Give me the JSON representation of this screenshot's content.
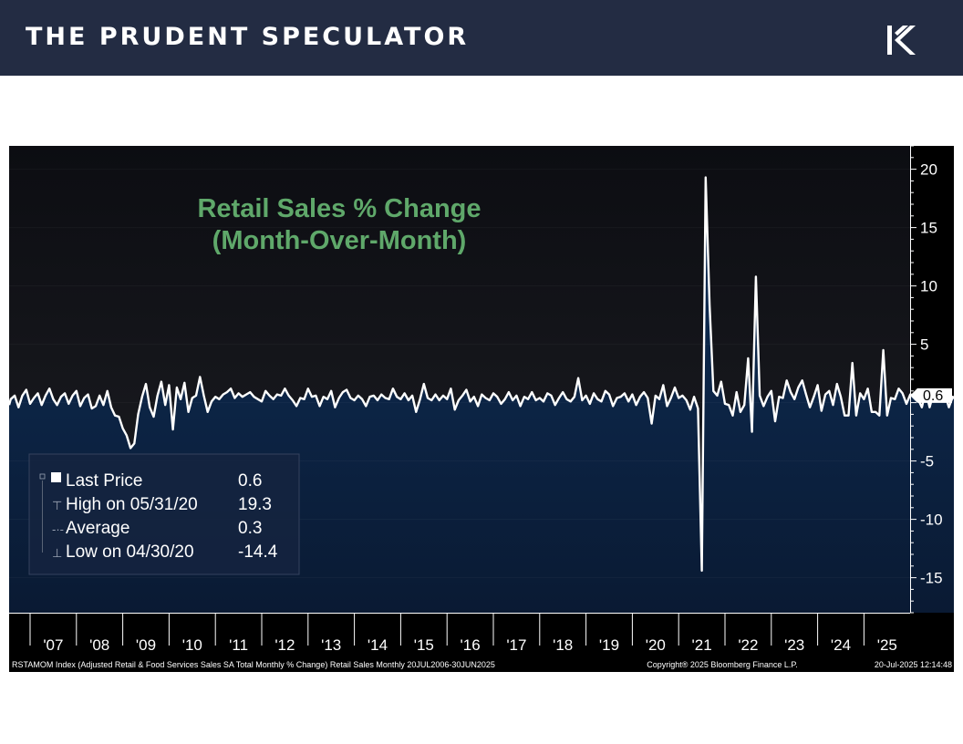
{
  "header": {
    "brand": "THE PRUDENT SPECULATOR",
    "logo_icon": "tps-logo-icon"
  },
  "chart_data": {
    "type": "area",
    "title": "Retail Sales % Change",
    "subtitle": "(Month-Over-Month)",
    "title_color": "#5fa86a",
    "ylim": [
      -18,
      22
    ],
    "y_ticks": [
      20,
      15,
      10,
      5,
      0,
      -5,
      -10,
      -15
    ],
    "y_tick_labels": [
      "20",
      "15",
      "10",
      "5",
      "",
      "-5",
      "-10",
      "-15"
    ],
    "x_labels": [
      "'07",
      "'08",
      "'09",
      "'10",
      "'11",
      "'12",
      "'13",
      "'14",
      "'15",
      "'16",
      "'17",
      "'18",
      "'19",
      "'20",
      "'21",
      "'22",
      "'23",
      "'24",
      "'25"
    ],
    "last_value_label": "0.6",
    "series": [
      {
        "x_start": "2006-07",
        "values": [
          -0.2,
          0.3,
          0.6,
          -0.4,
          0.6,
          1.1,
          -0.1,
          0.4,
          0.8,
          -0.2,
          0.6,
          1.2,
          0.3,
          -0.2,
          0.5,
          0.8,
          -0.1,
          0.6,
          1.0,
          -0.3,
          0.4,
          0.7,
          -0.5,
          -0.3,
          0.6,
          -0.2,
          1.0,
          -0.4,
          -1.1,
          -1.2,
          -2.2,
          -2.8,
          -3.9,
          -3.5,
          -1.0,
          0.5,
          1.6,
          -0.4,
          -1.2,
          0.6,
          1.8,
          -0.2,
          1.5,
          -2.3,
          1.3,
          0.3,
          1.7,
          -0.8,
          0.4,
          0.6,
          2.2,
          0.6,
          -0.8,
          0.1,
          0.5,
          0.3,
          0.7,
          0.9,
          1.2,
          0.4,
          0.8,
          0.5,
          0.7,
          0.9,
          0.5,
          0.3,
          0.1,
          1.0,
          0.6,
          0.3,
          0.7,
          0.6,
          1.2,
          0.6,
          0.2,
          -0.3,
          0.4,
          0.3,
          1.2,
          0.5,
          0.6,
          -0.3,
          0.5,
          0.3,
          1.0,
          -0.4,
          0.4,
          0.9,
          1.1,
          0.4,
          0.2,
          0.6,
          0.3,
          -0.3,
          0.5,
          0.6,
          0.2,
          0.7,
          0.4,
          0.3,
          1.2,
          0.5,
          0.3,
          0.8,
          0.2,
          0.6,
          -0.8,
          0.3,
          1.6,
          0.4,
          0.2,
          0.7,
          0.2,
          0.6,
          0.3,
          1.2,
          -0.6,
          0.2,
          0.6,
          1.1,
          0.1,
          0.5,
          -0.3,
          0.7,
          0.4,
          0.2,
          0.8,
          0.5,
          -0.1,
          0.3,
          0.9,
          0.2,
          0.6,
          -0.3,
          0.5,
          0.3,
          0.9,
          0.2,
          0.4,
          0.1,
          0.8,
          0.6,
          -0.2,
          0.4,
          0.9,
          0.3,
          0.1,
          0.5,
          2.1,
          0.2,
          0.6,
          -0.1,
          0.8,
          0.3,
          0.1,
          1.0,
          0.7,
          -0.3,
          0.4,
          0.5,
          0.8,
          0.1,
          0.7,
          -0.2,
          0.5,
          0.9,
          0.4,
          -1.8,
          0.6,
          0.3,
          1.5,
          -0.3,
          0.4,
          1.3,
          0.4,
          0.6,
          0.2,
          -0.6,
          0.5,
          -0.5,
          -14.4,
          19.3,
          8.4,
          1.0,
          0.6,
          1.8,
          -0.1,
          -0.2,
          -1.1,
          0.9,
          -0.8,
          -0.2,
          3.8,
          -2.5,
          10.8,
          0.6,
          -0.3,
          0.5,
          1.0,
          -1.6,
          0.5,
          0.4,
          1.9,
          0.9,
          0.3,
          1.3,
          1.9,
          0.7,
          -0.4,
          0.5,
          1.5,
          -0.7,
          0.7,
          1.0,
          -0.2,
          1.6,
          0.5,
          -1.1,
          -1.1,
          3.4,
          -1.1,
          0.8,
          0.3,
          1.2,
          -0.8,
          -0.8,
          -1.1,
          4.5,
          -1.1,
          0.4,
          0.3,
          1.2,
          0.8,
          -0.1,
          0.7,
          0.6,
          0.3,
          -0.4,
          1.0,
          -0.4,
          0.8,
          0.5,
          0.2,
          0.7,
          -0.4,
          0.5,
          0.2,
          0.8,
          0.4,
          -0.1,
          0.6,
          0.3,
          0.8,
          0.5,
          0.2,
          0.9,
          0.6,
          -0.6,
          0.6,
          0.3,
          0.2,
          0.7,
          0.5,
          -0.8,
          0.6,
          1.0,
          -0.4,
          -0.8,
          0.6
        ]
      }
    ],
    "legend": {
      "placement": "bottom-left",
      "rows": [
        {
          "label": "Last Price",
          "value": "0.6"
        },
        {
          "label": "High on 05/31/20",
          "value": "19.3"
        },
        {
          "label": "Average",
          "value": "0.3"
        },
        {
          "label": "Low on 04/30/20",
          "value": "-14.4"
        }
      ]
    },
    "footer_left": "RSTAMOM Index (Adjusted Retail & Food Services Sales SA Total Monthly % Change) Retail Sales  Monthly 20JUL2006-30JUN2025",
    "footer_center": "Copyright® 2025 Bloomberg Finance L.P.",
    "footer_right": "20-Jul-2025 12:14:48"
  }
}
